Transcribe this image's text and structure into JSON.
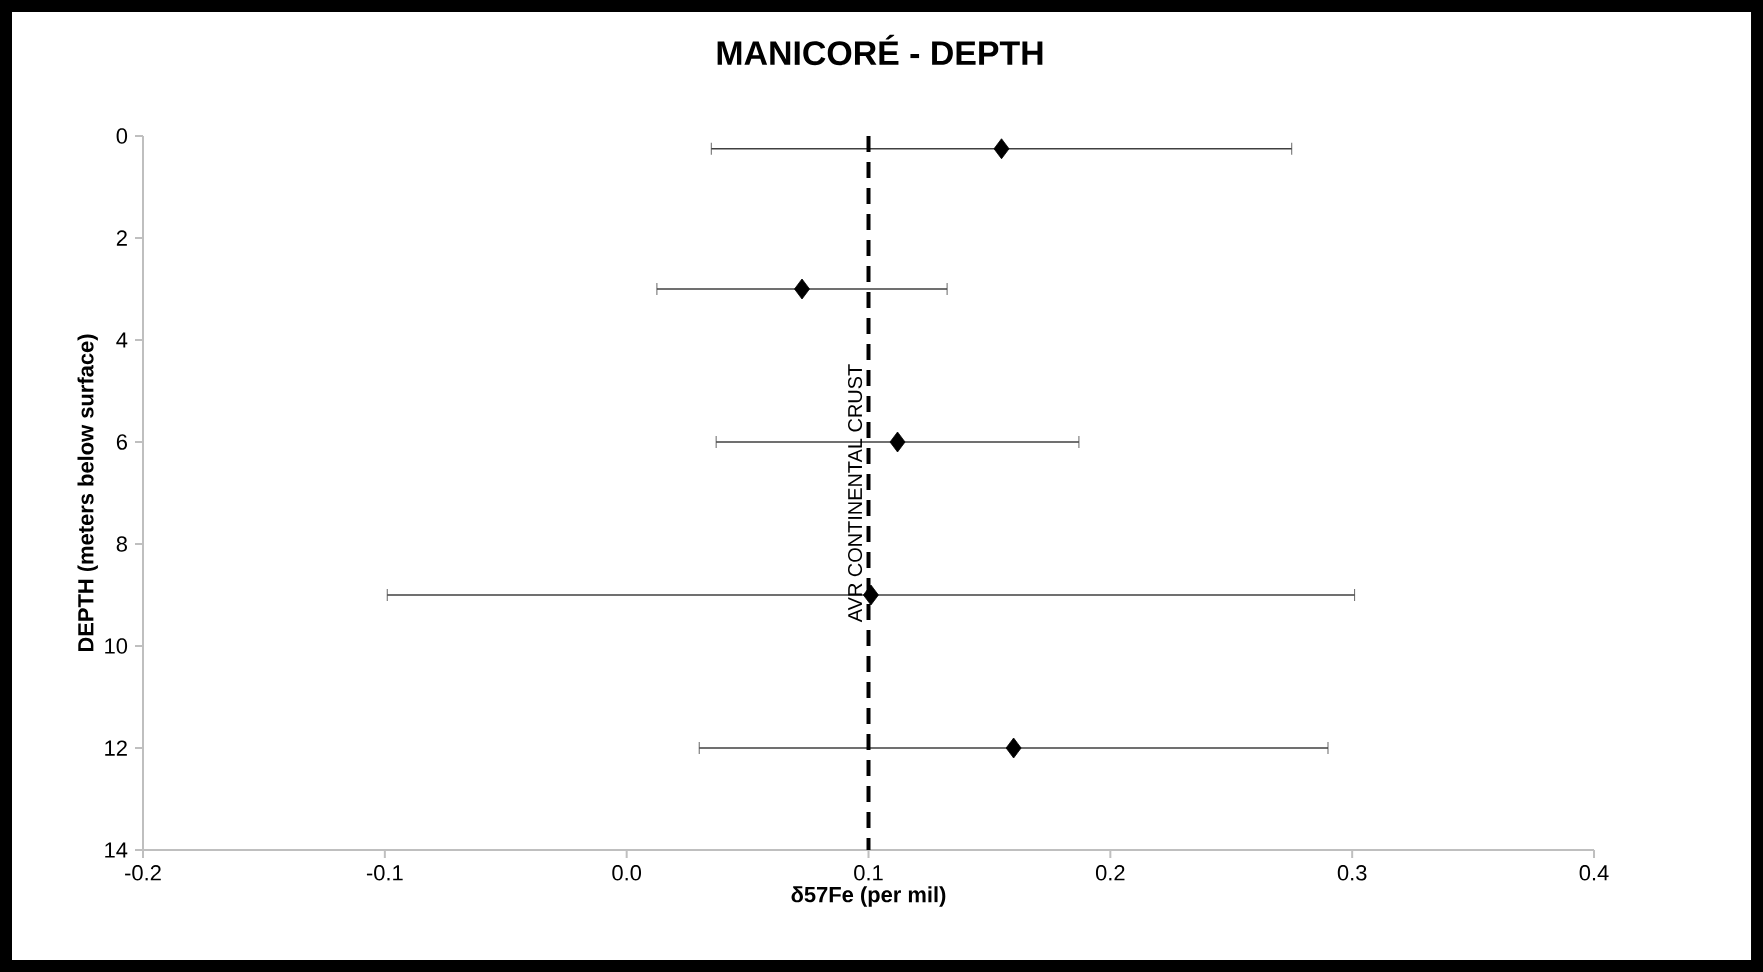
{
  "chart_data": {
    "type": "scatter",
    "title": "MANICORÉ - DEPTH",
    "xlabel": "δ57Fe (per mil)",
    "ylabel": "DEPTH (meters below surface)",
    "marker": "diamond",
    "series": [
      {
        "color": "#000000",
        "x": [
          0.155,
          0.0725,
          0.112,
          0.101,
          0.16
        ],
        "values": [
          0.25,
          3,
          6,
          9,
          12
        ],
        "xerrors": [
          0.12,
          0.06,
          0.075,
          0.2,
          0.13
        ]
      }
    ],
    "xlim": [
      -0.2,
      0.4
    ],
    "xticks": [
      {
        "value": -0.2,
        "label": "-0.2"
      },
      {
        "value": -0.1,
        "label": "-0.1"
      },
      {
        "value": 0,
        "label": "0.0"
      },
      {
        "value": 0.1,
        "label": "0.1"
      },
      {
        "value": 0.2,
        "label": "0.2"
      },
      {
        "value": 0.3,
        "label": "0.3"
      },
      {
        "value": 0.4,
        "label": "0.4"
      }
    ],
    "ylim": [
      14,
      0
    ],
    "yticks": [
      0,
      2,
      4,
      6,
      8,
      10,
      12,
      14
    ],
    "ref_lines": [
      {
        "axis": "x",
        "value": 0.1,
        "label": "AVR CONTINENTAL CRUST",
        "line_style": "dashed",
        "color": "#000000"
      }
    ]
  }
}
